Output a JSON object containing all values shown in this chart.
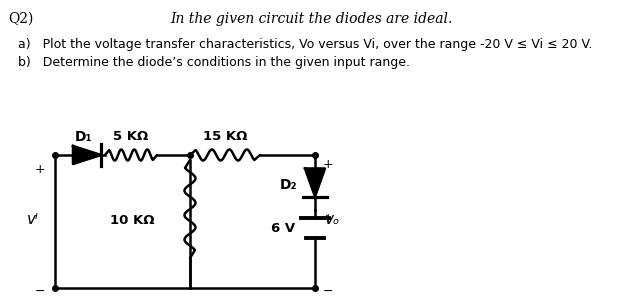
{
  "bg_color": "#ffffff",
  "title_text": "In the given circuit the diodes are ideal.",
  "q_label": "Q2)",
  "part_a": "a)   Plot the voltage transfer characteristics, Vo versus Vi, over the range -20 V ≤ Vi ≤ 20 V.",
  "part_b": "b)   Determine the diode’s conditions in the given input range.",
  "R1_label": "5 KΩ",
  "R2_label": "15 KΩ",
  "R3_label": "10 KΩ",
  "D1_label": "D₁",
  "D2_label": "D₂",
  "V_source_label": "6 V",
  "Vi_label": "vᴵ",
  "Vo_label": "vₒ",
  "line_color": "#000000",
  "text_color": "#000000",
  "lw": 1.8
}
